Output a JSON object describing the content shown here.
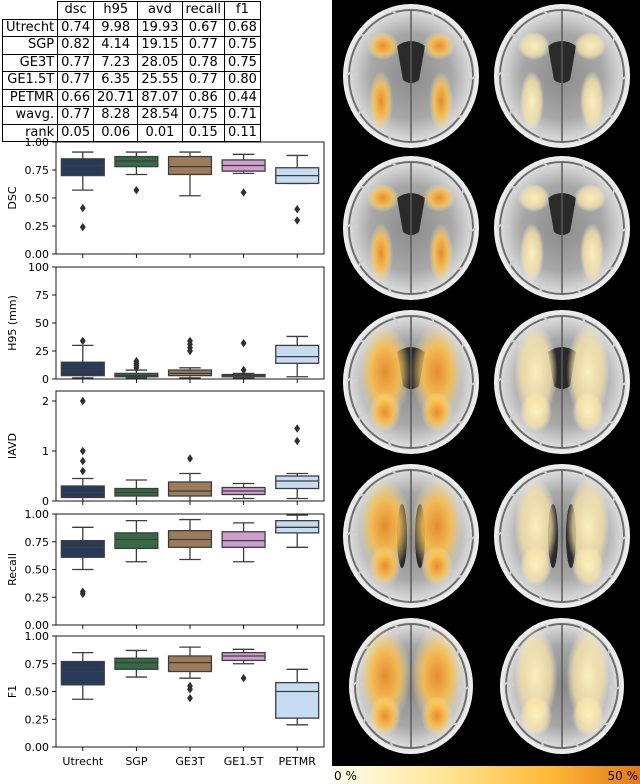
{
  "metrics_table": {
    "columns": [
      "dsc",
      "h95",
      "avd",
      "recall",
      "f1"
    ],
    "rows": [
      {
        "label": "Utrecht",
        "values": [
          "0.74",
          "9.98",
          "19.93",
          "0.67",
          "0.68"
        ]
      },
      {
        "label": "SGP",
        "values": [
          "0.82",
          "4.14",
          "19.15",
          "0.77",
          "0.75"
        ]
      },
      {
        "label": "GE3T",
        "values": [
          "0.77",
          "7.23",
          "28.05",
          "0.78",
          "0.75"
        ]
      },
      {
        "label": "GE1.5T",
        "values": [
          "0.77",
          "6.35",
          "25.55",
          "0.77",
          "0.80"
        ]
      },
      {
        "label": "PETMR",
        "values": [
          "0.66",
          "20.71",
          "87.07",
          "0.86",
          "0.44"
        ]
      },
      {
        "label": "wavg.",
        "values": [
          "0.77",
          "8.28",
          "28.54",
          "0.75",
          "0.71"
        ]
      },
      {
        "label": "rank",
        "values": [
          "0.05",
          "0.06",
          "0.01",
          "0.15",
          "0.11"
        ]
      }
    ]
  },
  "chart_data": [
    {
      "type": "box",
      "ylabel": "DSC",
      "ylim": [
        0,
        1
      ],
      "yticks": [
        "0.00",
        "0.25",
        "0.50",
        "0.75",
        "1.00"
      ],
      "categories": [
        "Utrecht",
        "SGP",
        "GE3T",
        "GE1.5T",
        "PETMR"
      ],
      "boxes": [
        {
          "min": 0.57,
          "q1": 0.7,
          "median": 0.79,
          "q3": 0.85,
          "max": 0.91,
          "outliers": [
            0.41,
            0.24
          ]
        },
        {
          "min": 0.71,
          "q1": 0.78,
          "median": 0.83,
          "q3": 0.87,
          "max": 0.91,
          "outliers": [
            0.57
          ]
        },
        {
          "min": 0.52,
          "q1": 0.71,
          "median": 0.78,
          "q3": 0.87,
          "max": 0.91,
          "outliers": []
        },
        {
          "min": 0.72,
          "q1": 0.74,
          "median": 0.79,
          "q3": 0.84,
          "max": 0.89,
          "outliers": [
            0.55
          ]
        },
        {
          "min": 0.63,
          "q1": 0.63,
          "median": 0.7,
          "q3": 0.77,
          "max": 0.88,
          "outliers": [
            0.4,
            0.3
          ]
        }
      ]
    },
    {
      "type": "box",
      "ylabel": "H95 (mm)",
      "ylim": [
        0,
        100
      ],
      "yticks": [
        "0",
        "25",
        "50",
        "75",
        "100"
      ],
      "categories": [
        "Utrecht",
        "SGP",
        "GE3T",
        "GE1.5T",
        "PETMR"
      ],
      "boxes": [
        {
          "min": 1,
          "q1": 3,
          "median": 8,
          "q3": 15,
          "max": 30,
          "outliers": [
            34
          ]
        },
        {
          "min": 1,
          "q1": 2,
          "median": 3,
          "q3": 5,
          "max": 8,
          "outliers": [
            10,
            12,
            14,
            16
          ]
        },
        {
          "min": 1,
          "q1": 3,
          "median": 5,
          "q3": 8,
          "max": 10,
          "outliers": [
            25,
            28,
            31,
            34
          ]
        },
        {
          "min": 1,
          "q1": 2,
          "median": 3,
          "q3": 4,
          "max": 5,
          "outliers": [
            8,
            32
          ]
        },
        {
          "min": 2,
          "q1": 14,
          "median": 20,
          "q3": 30,
          "max": 38,
          "outliers": []
        }
      ]
    },
    {
      "type": "box",
      "ylabel": "lAVD",
      "ylim": [
        0,
        2.2
      ],
      "yticks": [
        "0",
        "1",
        "2"
      ],
      "yticks_values": [
        0,
        1,
        2
      ],
      "categories": [
        "Utrecht",
        "SGP",
        "GE3T",
        "GE1.5T",
        "PETMR"
      ],
      "boxes": [
        {
          "min": 0.0,
          "q1": 0.07,
          "median": 0.17,
          "q3": 0.3,
          "max": 0.45,
          "outliers": [
            0.6,
            0.8,
            1.0,
            2.0
          ]
        },
        {
          "min": 0.0,
          "q1": 0.1,
          "median": 0.17,
          "q3": 0.25,
          "max": 0.42,
          "outliers": []
        },
        {
          "min": 0.0,
          "q1": 0.1,
          "median": 0.2,
          "q3": 0.38,
          "max": 0.55,
          "outliers": [
            0.85
          ]
        },
        {
          "min": 0.05,
          "q1": 0.13,
          "median": 0.2,
          "q3": 0.27,
          "max": 0.35,
          "outliers": []
        },
        {
          "min": 0.05,
          "q1": 0.25,
          "median": 0.4,
          "q3": 0.5,
          "max": 0.55,
          "outliers": [
            1.2,
            1.45
          ]
        }
      ]
    },
    {
      "type": "box",
      "ylabel": "Recall",
      "ylim": [
        0,
        1
      ],
      "yticks": [
        "0.00",
        "0.25",
        "0.50",
        "0.75",
        "1.00"
      ],
      "categories": [
        "Utrecht",
        "SGP",
        "GE3T",
        "GE1.5T",
        "PETMR"
      ],
      "boxes": [
        {
          "min": 0.5,
          "q1": 0.61,
          "median": 0.7,
          "q3": 0.76,
          "max": 0.88,
          "outliers": [
            0.3,
            0.28
          ]
        },
        {
          "min": 0.57,
          "q1": 0.69,
          "median": 0.77,
          "q3": 0.83,
          "max": 0.94,
          "outliers": []
        },
        {
          "min": 0.59,
          "q1": 0.7,
          "median": 0.77,
          "q3": 0.85,
          "max": 0.95,
          "outliers": []
        },
        {
          "min": 0.57,
          "q1": 0.7,
          "median": 0.76,
          "q3": 0.84,
          "max": 0.92,
          "outliers": []
        },
        {
          "min": 0.7,
          "q1": 0.83,
          "median": 0.88,
          "q3": 0.94,
          "max": 0.99,
          "outliers": []
        }
      ]
    },
    {
      "type": "box",
      "ylabel": "F1",
      "ylim": [
        0,
        1
      ],
      "yticks": [
        "0.00",
        "0.25",
        "0.50",
        "0.75",
        "1.00"
      ],
      "categories": [
        "Utrecht",
        "SGP",
        "GE3T",
        "GE1.5T",
        "PETMR"
      ],
      "boxes": [
        {
          "min": 0.43,
          "q1": 0.56,
          "median": 0.68,
          "q3": 0.77,
          "max": 0.85,
          "outliers": []
        },
        {
          "min": 0.63,
          "q1": 0.7,
          "median": 0.76,
          "q3": 0.8,
          "max": 0.87,
          "outliers": []
        },
        {
          "min": 0.62,
          "q1": 0.68,
          "median": 0.76,
          "q3": 0.82,
          "max": 0.9,
          "outliers": [
            0.55,
            0.52,
            0.44
          ]
        },
        {
          "min": 0.75,
          "q1": 0.78,
          "median": 0.82,
          "q3": 0.85,
          "max": 0.88,
          "outliers": [
            0.62
          ]
        },
        {
          "min": 0.2,
          "q1": 0.26,
          "median": 0.5,
          "q3": 0.58,
          "max": 0.7,
          "outliers": []
        }
      ]
    }
  ],
  "box_colors": [
    "#283a5a",
    "#356a45",
    "#9c7c5c",
    "#cf9fcf",
    "#c7dcf2"
  ],
  "brain_panel": {
    "colorbar_min_label": "0 %",
    "colorbar_max_label": "50 %",
    "colorbar_colors": [
      "#fffdf0",
      "#ffe79a",
      "#ffba3a",
      "#e2791a"
    ]
  }
}
